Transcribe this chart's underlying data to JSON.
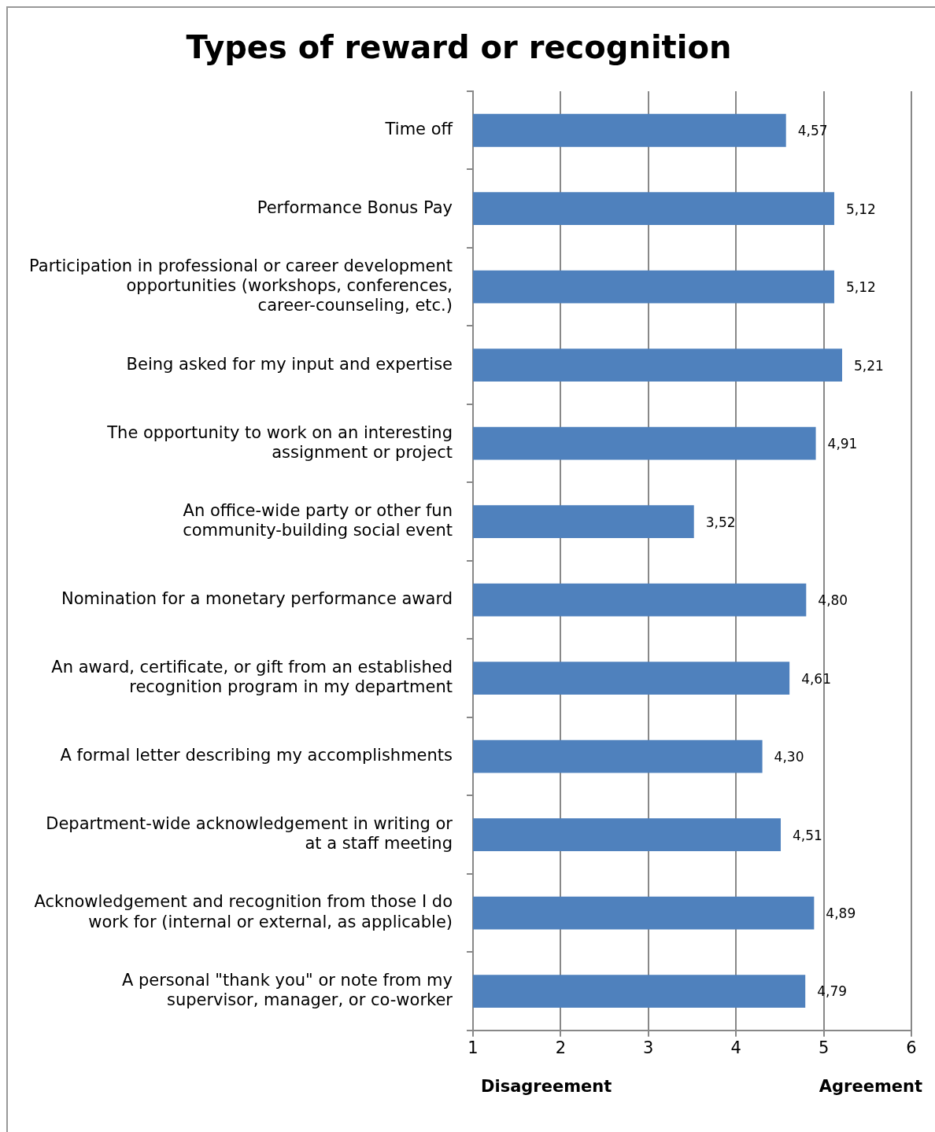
{
  "chart_data": {
    "type": "bar",
    "orientation": "horizontal",
    "title": "Types of reward or recognition",
    "categories": [
      "Time off",
      "Performance Bonus Pay",
      "Participation in professional or career development opportunities (workshops, conferences, career-counseling, etc.)",
      "Being asked for my input and expertise",
      "The opportunity to work on an interesting assignment or project",
      "An office-wide party or other fun community-building social event",
      "Nomination for a monetary performance award",
      "An award, certificate, or gift from an established recognition program in my department",
      "A formal letter describing my accomplishments",
      "Department-wide acknowledgement in writing or at a staff meeting",
      "Acknowledgement and recognition from those I do work for (internal or external, as applicable)",
      "A personal \"thank you\" or note from my supervisor, manager, or co-worker"
    ],
    "values": [
      4.57,
      5.12,
      5.12,
      5.21,
      4.91,
      3.52,
      4.8,
      4.61,
      4.3,
      4.51,
      4.89,
      4.79
    ],
    "value_labels": [
      "4,57",
      "5,12",
      "5,12",
      "5,21",
      "4,91",
      "3,52",
      "4,80",
      "4,61",
      "4,30",
      "4,51",
      "4,89",
      "4,79"
    ],
    "color": "#4f81bd",
    "xlim": [
      1,
      6
    ],
    "xticks": [
      1,
      2,
      3,
      4,
      5,
      6
    ],
    "grid": "x",
    "legend": false,
    "annotations": [
      "Disagreement",
      "Agreement"
    ]
  }
}
